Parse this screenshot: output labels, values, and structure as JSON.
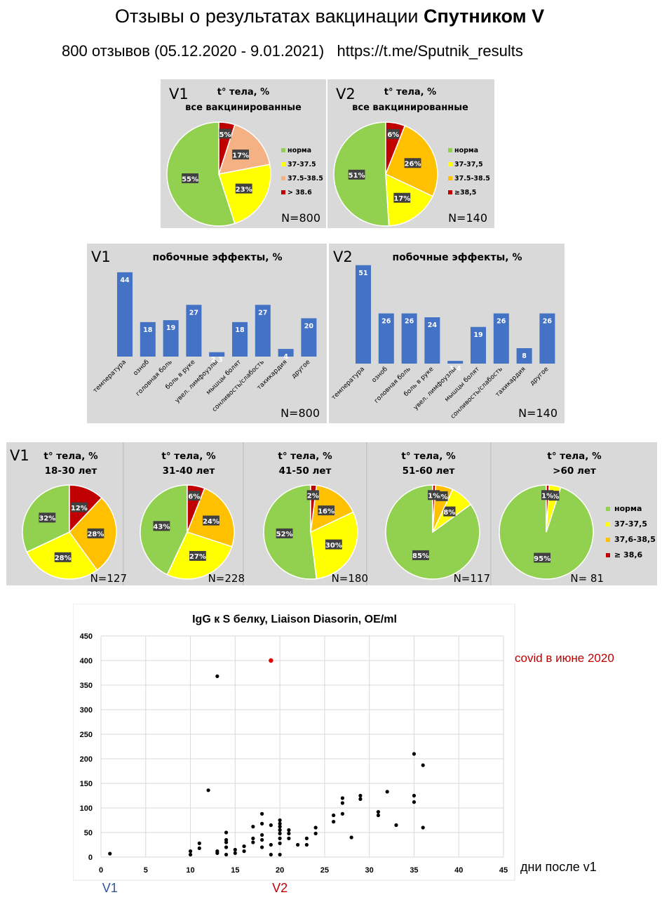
{
  "header": {
    "title_regular": "Отзывы о результатах вакцинации ",
    "title_bold": "Спутником V",
    "subtitle": "800 отзывов (05.12.2020 - 9.01.2021)   https://t.me/Sputnik_results"
  },
  "colors": {
    "green": "#92d050",
    "yellow": "#ffff00",
    "salmon": "#f4b183",
    "orange": "#ffc000",
    "red": "#c00000",
    "bar": "#4472c4",
    "scatter_red": "#e00000",
    "scatter_axis_blue": "#2f5597",
    "scatter_axis_red": "#c00000"
  },
  "chart_data": [
    {
      "id": "fever_v1",
      "type": "pie",
      "dose": "V1",
      "title": "t° тела, %",
      "subtitle": "все вакцинированные",
      "n_label": "N=800",
      "slices": [
        {
          "label": "норма",
          "value": 55,
          "color": "#92d050"
        },
        {
          "label": "37-37.5",
          "value": 23,
          "color": "#ffff00"
        },
        {
          "label": "37.5-38.5",
          "value": 17,
          "color": "#f4b183"
        },
        {
          "label": "> 38.6",
          "value": 5,
          "color": "#c00000"
        }
      ]
    },
    {
      "id": "fever_v2",
      "type": "pie",
      "dose": "V2",
      "title": "t° тела, %",
      "subtitle": "все вакцинированные",
      "n_label": "N=140",
      "slices": [
        {
          "label": "норма",
          "value": 51,
          "color": "#92d050"
        },
        {
          "label": "37-37,5",
          "value": 17,
          "color": "#ffff00"
        },
        {
          "label": "37.5-38.5",
          "value": 26,
          "color": "#ffc000"
        },
        {
          "label": "≥38,5",
          "value": 6,
          "color": "#c00000"
        }
      ]
    },
    {
      "id": "side_v1",
      "type": "bar",
      "dose": "V1",
      "title": "побочные эффекты, %",
      "n_label": "N=800",
      "categories": [
        "температура",
        "озноб",
        "головная боль",
        "боль в руке",
        "увел. лимфоузлы",
        "мышцы болят",
        "сонливость/слабость",
        "тахикардия",
        "другое"
      ],
      "values": [
        44,
        18,
        19,
        27,
        2.3,
        18,
        27,
        4,
        20
      ],
      "value_labels": [
        "44",
        "18",
        "19",
        "27",
        "2,3",
        "18",
        "27",
        "4",
        "20"
      ]
    },
    {
      "id": "side_v2",
      "type": "bar",
      "dose": "V2",
      "title": "побочные эффекты, %",
      "n_label": "N=140",
      "categories": [
        "температура",
        "озноб",
        "головная боль",
        "боль в руке",
        "увел. лимфоузлы",
        "мышцы болят",
        "сонливость/слабость",
        "тахикардия",
        "другое"
      ],
      "values": [
        51,
        26,
        26,
        24,
        1.4,
        19,
        26,
        8,
        26
      ],
      "value_labels": [
        "51",
        "26",
        "26",
        "24",
        "1,4",
        "19",
        "26",
        "8",
        "26"
      ]
    },
    {
      "id": "age_18_30",
      "type": "pie",
      "dose": "V1",
      "title": "t° тела, %",
      "subtitle": "18-30 лет",
      "n_label": "N=127",
      "slices": [
        {
          "label": "норма",
          "value": 32,
          "color": "#92d050"
        },
        {
          "label": "37-37,5",
          "value": 28,
          "color": "#ffff00"
        },
        {
          "label": "37,6-38,5",
          "value": 28,
          "color": "#ffc000"
        },
        {
          "label": "≥ 38,6",
          "value": 12,
          "color": "#c00000"
        }
      ]
    },
    {
      "id": "age_31_40",
      "type": "pie",
      "title": "t° тела, %",
      "subtitle": "31-40 лет",
      "n_label": "N=228",
      "slices": [
        {
          "label": "норма",
          "value": 43,
          "color": "#92d050"
        },
        {
          "label": "37-37,5",
          "value": 27,
          "color": "#ffff00"
        },
        {
          "label": "37,6-38,5",
          "value": 24,
          "color": "#ffc000"
        },
        {
          "label": "≥ 38,6",
          "value": 6,
          "color": "#c00000"
        }
      ]
    },
    {
      "id": "age_41_50",
      "type": "pie",
      "title": "t° тела, %",
      "subtitle": "41-50 лет",
      "n_label": "N=180",
      "slices": [
        {
          "label": "норма",
          "value": 52,
          "color": "#92d050"
        },
        {
          "label": "37-37,5",
          "value": 30,
          "color": "#ffff00"
        },
        {
          "label": "37,6-38,5",
          "value": 16,
          "color": "#ffc000"
        },
        {
          "label": "≥ 38,6",
          "value": 2,
          "color": "#c00000"
        }
      ]
    },
    {
      "id": "age_51_60",
      "type": "pie",
      "title": "t° тела, %",
      "subtitle": "51-60 лет",
      "n_label": "N=117",
      "slices": [
        {
          "label": "норма",
          "value": 85,
          "color": "#92d050"
        },
        {
          "label": "37-37,5",
          "value": 8,
          "color": "#ffff00"
        },
        {
          "label": "37,6-38,5",
          "value": 6,
          "color": "#ffc000"
        },
        {
          "label": "≥ 38,6",
          "value": 1,
          "color": "#c00000"
        }
      ]
    },
    {
      "id": "age_60plus",
      "type": "pie",
      "title": "t° тела, %",
      "subtitle": ">60 лет",
      "n_label": "N= 81",
      "slices": [
        {
          "label": "норма",
          "value": 95,
          "color": "#92d050"
        },
        {
          "label": "37-37,5",
          "value": 4,
          "color": "#ffff00"
        },
        {
          "label": "37,6-38,5",
          "value": 0,
          "color": "#ffc000"
        },
        {
          "label": "≥ 38,6",
          "value": 1,
          "color": "#c00000"
        }
      ]
    },
    {
      "id": "igg",
      "type": "scatter",
      "title": "IgG к S белку, Liaison Diasorin, OE/ml",
      "xlabel": "дни после v1",
      "xlim": [
        0,
        45
      ],
      "ylim": [
        0,
        450
      ],
      "x_ticks": [
        0,
        5,
        10,
        15,
        20,
        25,
        30,
        35,
        40,
        45
      ],
      "y_ticks": [
        0,
        50,
        100,
        150,
        200,
        250,
        300,
        350,
        400,
        450
      ],
      "marker_v1": "V1",
      "marker_v2": "V2",
      "annotation": "covid в июне 2020",
      "highlight_point": {
        "x": 19,
        "y": 400
      },
      "points": [
        [
          1,
          7
        ],
        [
          10,
          5
        ],
        [
          10,
          12
        ],
        [
          11,
          18
        ],
        [
          11,
          28
        ],
        [
          12,
          136
        ],
        [
          13,
          368
        ],
        [
          13,
          12
        ],
        [
          13,
          8
        ],
        [
          14,
          5
        ],
        [
          14,
          20
        ],
        [
          14,
          30
        ],
        [
          14,
          35
        ],
        [
          14,
          50
        ],
        [
          15,
          15
        ],
        [
          15,
          8
        ],
        [
          16,
          12
        ],
        [
          16,
          22
        ],
        [
          17,
          30
        ],
        [
          17,
          38
        ],
        [
          17,
          62
        ],
        [
          18,
          20
        ],
        [
          18,
          35
        ],
        [
          18,
          45
        ],
        [
          18,
          68
        ],
        [
          18,
          88
        ],
        [
          19,
          25
        ],
        [
          19,
          65
        ],
        [
          19,
          5
        ],
        [
          20,
          5
        ],
        [
          20,
          28
        ],
        [
          20,
          38
        ],
        [
          20,
          48
        ],
        [
          20,
          55
        ],
        [
          20,
          62
        ],
        [
          20,
          68
        ],
        [
          20,
          75
        ],
        [
          21,
          38
        ],
        [
          21,
          48
        ],
        [
          21,
          55
        ],
        [
          22,
          25
        ],
        [
          23,
          25
        ],
        [
          23,
          38
        ],
        [
          24,
          48
        ],
        [
          24,
          60
        ],
        [
          26,
          72
        ],
        [
          26,
          85
        ],
        [
          27,
          88
        ],
        [
          27,
          110
        ],
        [
          27,
          120
        ],
        [
          28,
          40
        ],
        [
          29,
          118
        ],
        [
          29,
          125
        ],
        [
          31,
          85
        ],
        [
          31,
          92
        ],
        [
          32,
          133
        ],
        [
          33,
          65
        ],
        [
          35,
          112
        ],
        [
          35,
          125
        ],
        [
          35,
          210
        ],
        [
          36,
          60
        ],
        [
          36,
          187
        ]
      ]
    }
  ]
}
